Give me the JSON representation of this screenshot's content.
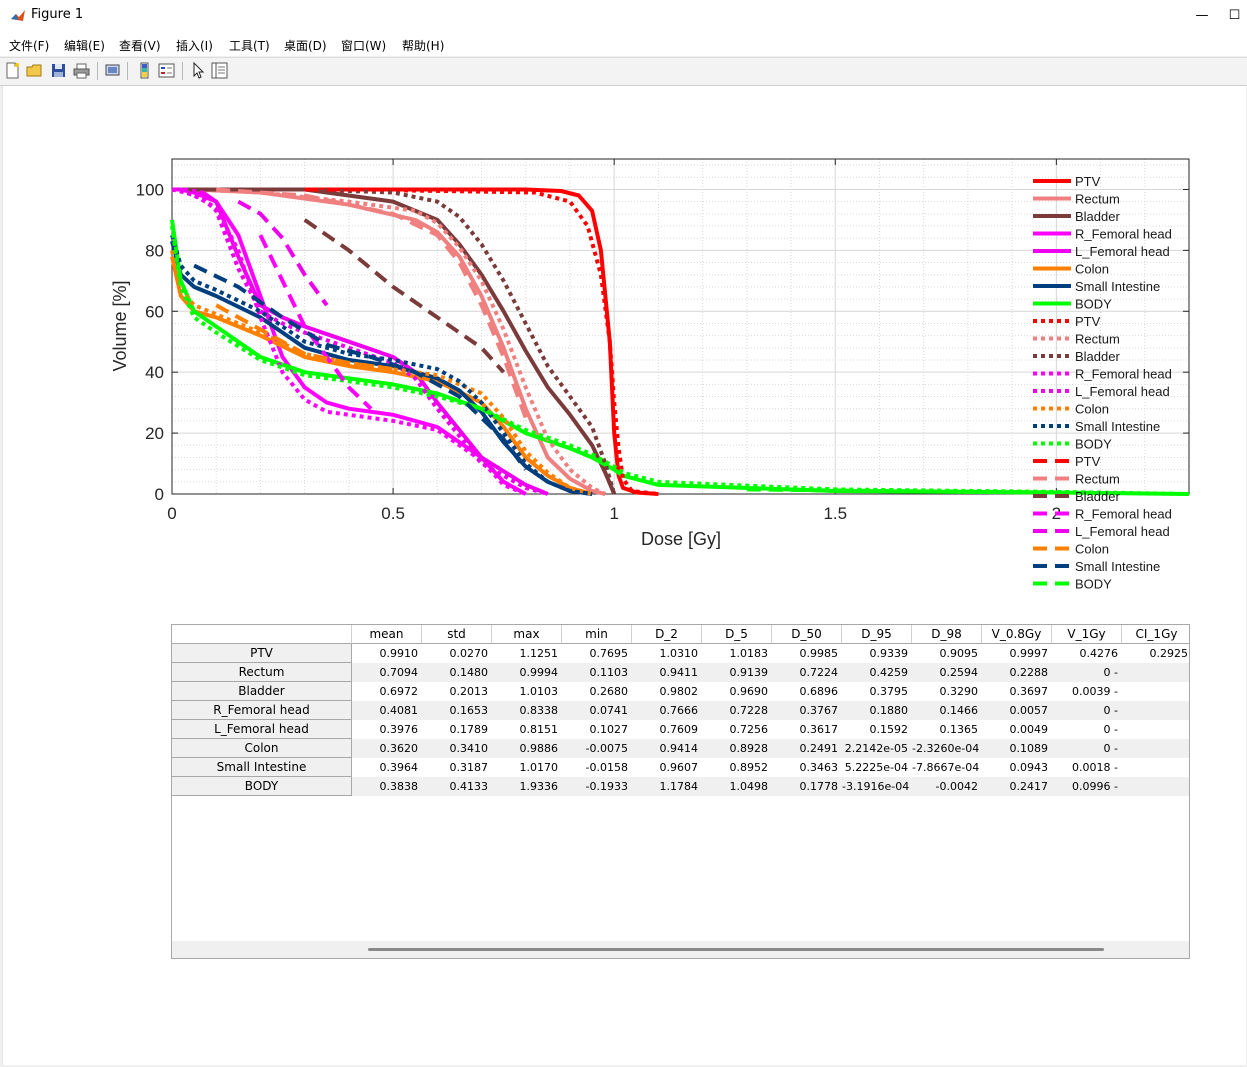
{
  "window": {
    "title": "Figure 1"
  },
  "menu": [
    "文件(F)",
    "编辑(E)",
    "查看(V)",
    "插入(I)",
    "工具(T)",
    "桌面(D)",
    "窗口(W)",
    "帮助(H)"
  ],
  "toolbar_icons": [
    "new-figure-icon",
    "open-icon",
    "save-icon",
    "print-icon",
    "print-preview-icon",
    "insert-colorbar-icon",
    "insert-legend-icon",
    "edit-plot-icon",
    "property-inspector-icon"
  ],
  "colors": {
    "PTV": "#ff0000",
    "Rectum": "#f08080",
    "Bladder": "#7b3b3b",
    "R_Femoral head": "#ff00ff",
    "L_Femoral head": "#ee00ee",
    "Colon": "#ff8000",
    "Small Intestine": "#003f7f",
    "BODY": "#00ff00"
  },
  "chart_data": {
    "type": "line",
    "xlabel": "Dose [Gy]",
    "ylabel": "Volume [%]",
    "xlim": [
      0,
      2.3
    ],
    "ylim": [
      0,
      110
    ],
    "xticks": [
      "0",
      "0.5",
      "1",
      "1.5",
      "2"
    ],
    "xtick_values": [
      0,
      0.5,
      1,
      1.5,
      2
    ],
    "yticks": [
      "0",
      "20",
      "40",
      "60",
      "80",
      "100"
    ],
    "ytick_values": [
      0,
      20,
      40,
      60,
      80,
      100
    ],
    "grid": true,
    "legend_position": "top-right",
    "series": [
      {
        "name": "PTV",
        "style": "solid",
        "x": [
          0,
          0.35,
          0.8,
          0.88,
          0.92,
          0.95,
          0.97,
          0.99,
          1.0,
          1.01,
          1.02,
          1.05,
          1.1
        ],
        "y": [
          100,
          100,
          100,
          99.5,
          98,
          93,
          80,
          50,
          20,
          6,
          2,
          0.5,
          0
        ]
      },
      {
        "name": "Rectum",
        "style": "solid",
        "x": [
          0,
          0.05,
          0.2,
          0.4,
          0.55,
          0.6,
          0.65,
          0.7,
          0.75,
          0.8,
          0.85,
          0.9,
          0.95,
          0.98
        ],
        "y": [
          100,
          100,
          99,
          95,
          90,
          86,
          78,
          65,
          48,
          28,
          12,
          5,
          1,
          0
        ]
      },
      {
        "name": "Bladder",
        "style": "solid",
        "x": [
          0,
          0.1,
          0.3,
          0.5,
          0.6,
          0.65,
          0.7,
          0.75,
          0.8,
          0.85,
          0.9,
          0.95,
          0.98,
          1.0
        ],
        "y": [
          100,
          100,
          100,
          96,
          90,
          82,
          72,
          60,
          47,
          35,
          26,
          16,
          7,
          0
        ]
      },
      {
        "name": "R_Femoral head",
        "style": "solid",
        "x": [
          0,
          0.02,
          0.05,
          0.1,
          0.15,
          0.2,
          0.25,
          0.3,
          0.35,
          0.4,
          0.5,
          0.6,
          0.7,
          0.75,
          0.8
        ],
        "y": [
          100,
          100,
          99,
          96,
          85,
          65,
          45,
          35,
          30,
          28,
          26,
          22,
          12,
          4,
          0
        ]
      },
      {
        "name": "L_Femoral head",
        "style": "solid",
        "x": [
          0,
          0.03,
          0.07,
          0.1,
          0.15,
          0.2,
          0.25,
          0.3,
          0.4,
          0.5,
          0.55,
          0.6,
          0.7,
          0.8,
          0.85
        ],
        "y": [
          100,
          100,
          99,
          96,
          78,
          62,
          58,
          55,
          50,
          45,
          40,
          30,
          12,
          3,
          0
        ]
      },
      {
        "name": "Colon",
        "style": "solid",
        "x": [
          0,
          0.02,
          0.05,
          0.1,
          0.2,
          0.3,
          0.4,
          0.5,
          0.6,
          0.7,
          0.75,
          0.8,
          0.85,
          0.9,
          0.95
        ],
        "y": [
          78,
          65,
          60,
          58,
          52,
          45,
          42,
          40,
          37,
          30,
          22,
          12,
          6,
          2,
          0
        ]
      },
      {
        "name": "Small Intestine",
        "style": "solid",
        "x": [
          0,
          0.02,
          0.05,
          0.1,
          0.2,
          0.3,
          0.4,
          0.5,
          0.6,
          0.65,
          0.7,
          0.75,
          0.8,
          0.85,
          0.9,
          0.95
        ],
        "y": [
          83,
          72,
          68,
          65,
          58,
          48,
          44,
          42,
          38,
          34,
          27,
          17,
          9,
          4,
          1,
          0
        ]
      },
      {
        "name": "BODY",
        "style": "solid",
        "x": [
          0,
          0.02,
          0.05,
          0.1,
          0.2,
          0.3,
          0.4,
          0.5,
          0.6,
          0.7,
          0.8,
          0.9,
          0.95,
          1.0,
          1.02,
          1.1,
          1.5,
          2.0,
          2.3
        ],
        "y": [
          90,
          70,
          60,
          55,
          45,
          40,
          38,
          36,
          33,
          28,
          20,
          15,
          12,
          8,
          6,
          3,
          1,
          0.5,
          0
        ]
      },
      {
        "name": "PTV",
        "style": "dot",
        "x": [
          0,
          0.4,
          0.82,
          0.9,
          0.94,
          0.97,
          0.99,
          1.0,
          1.01,
          1.02,
          1.04,
          1.1
        ],
        "y": [
          100,
          100,
          99,
          96,
          88,
          72,
          50,
          30,
          15,
          5,
          1,
          0
        ]
      },
      {
        "name": "Rectum",
        "style": "dot",
        "x": [
          0,
          0.05,
          0.2,
          0.4,
          0.55,
          0.6,
          0.65,
          0.7,
          0.75,
          0.8,
          0.85,
          0.9,
          0.95,
          0.98
        ],
        "y": [
          100,
          100,
          99,
          96,
          93,
          89,
          81,
          70,
          54,
          35,
          18,
          8,
          2,
          0
        ]
      },
      {
        "name": "Bladder",
        "style": "dot",
        "x": [
          0,
          0.1,
          0.3,
          0.5,
          0.6,
          0.65,
          0.7,
          0.75,
          0.8,
          0.85,
          0.9,
          0.95,
          0.98,
          1.0
        ],
        "y": [
          100,
          100,
          100,
          99,
          96,
          91,
          82,
          70,
          56,
          42,
          32,
          22,
          10,
          0
        ]
      },
      {
        "name": "R_Femoral head",
        "style": "dot",
        "x": [
          0,
          0.02,
          0.05,
          0.1,
          0.15,
          0.2,
          0.25,
          0.3,
          0.35,
          0.4,
          0.5,
          0.6,
          0.7,
          0.75,
          0.8
        ],
        "y": [
          100,
          100,
          98,
          94,
          80,
          58,
          40,
          31,
          27,
          26,
          24,
          21,
          11,
          3,
          0
        ]
      },
      {
        "name": "L_Femoral head",
        "style": "dot",
        "x": [
          0,
          0.03,
          0.07,
          0.1,
          0.15,
          0.2,
          0.25,
          0.3,
          0.4,
          0.5,
          0.55,
          0.6,
          0.7,
          0.8,
          0.85
        ],
        "y": [
          100,
          99,
          97,
          93,
          74,
          60,
          56,
          53,
          48,
          43,
          38,
          28,
          10,
          2,
          0
        ]
      },
      {
        "name": "Colon",
        "style": "dot",
        "x": [
          0,
          0.02,
          0.05,
          0.1,
          0.2,
          0.3,
          0.4,
          0.5,
          0.6,
          0.7,
          0.75,
          0.8,
          0.85,
          0.9,
          0.95
        ],
        "y": [
          80,
          67,
          62,
          59,
          53,
          46,
          43,
          41,
          39,
          33,
          25,
          14,
          7,
          2,
          0
        ]
      },
      {
        "name": "Small Intestine",
        "style": "dot",
        "x": [
          0,
          0.02,
          0.05,
          0.1,
          0.2,
          0.3,
          0.4,
          0.5,
          0.6,
          0.65,
          0.7,
          0.75,
          0.8,
          0.85,
          0.9,
          0.95
        ],
        "y": [
          85,
          75,
          70,
          67,
          60,
          50,
          46,
          44,
          41,
          37,
          30,
          20,
          10,
          4,
          1,
          0
        ]
      },
      {
        "name": "BODY",
        "style": "dot",
        "x": [
          0,
          0.02,
          0.05,
          0.1,
          0.2,
          0.3,
          0.4,
          0.5,
          0.6,
          0.7,
          0.8,
          0.9,
          0.95,
          1.0,
          1.02,
          1.1,
          1.5,
          2.0,
          2.3
        ],
        "y": [
          88,
          68,
          58,
          53,
          44,
          39,
          37,
          35,
          32,
          28,
          21,
          16,
          13,
          9,
          7,
          4,
          1.5,
          0.7,
          0
        ]
      },
      {
        "name": "PTV",
        "style": "dash",
        "x": [
          0.3,
          0.5
        ],
        "y": [
          100,
          100
        ]
      },
      {
        "name": "Rectum",
        "style": "dash",
        "x": [
          0.1,
          0.3,
          0.5,
          0.6,
          0.65,
          0.7,
          0.75,
          0.8
        ],
        "y": [
          100,
          98,
          92,
          85,
          76,
          62,
          45,
          25
        ]
      },
      {
        "name": "Bladder",
        "style": "dash",
        "x": [
          0.3,
          0.4,
          0.5,
          0.6,
          0.7,
          0.75
        ],
        "y": [
          90,
          80,
          68,
          58,
          48,
          40
        ]
      },
      {
        "name": "R_Femoral head",
        "style": "dash",
        "x": [
          0.2,
          0.25,
          0.3,
          0.35,
          0.4,
          0.45
        ],
        "y": [
          85,
          70,
          55,
          45,
          35,
          28
        ]
      },
      {
        "name": "L_Femoral head",
        "style": "dash",
        "x": [
          0.15,
          0.2,
          0.25,
          0.3,
          0.35
        ],
        "y": [
          96,
          92,
          84,
          72,
          62
        ]
      },
      {
        "name": "Colon",
        "style": "dash",
        "x": [
          0.1,
          0.2,
          0.3,
          0.4,
          0.5
        ],
        "y": [
          62,
          54,
          46,
          43,
          41
        ]
      },
      {
        "name": "Small Intestine",
        "style": "dash",
        "x": [
          0.05,
          0.15,
          0.25,
          0.35,
          0.45,
          0.55,
          0.65,
          0.75,
          0.8
        ],
        "y": [
          75,
          68,
          58,
          49,
          45,
          40,
          32,
          18,
          8
        ]
      },
      {
        "name": "BODY",
        "style": "dash",
        "x": [
          1.3,
          1.6,
          2.0
        ],
        "y": [
          1.5,
          1,
          0.5
        ]
      }
    ]
  },
  "table": {
    "columns": [
      "mean",
      "std",
      "max",
      "min",
      "D_2",
      "D_5",
      "D_50",
      "D_95",
      "D_98",
      "V_0.8Gy",
      "V_1Gy",
      "CI_1Gy"
    ],
    "rows": [
      {
        "name": "PTV",
        "values": [
          "0.9910",
          "0.0270",
          "1.1251",
          "0.7695",
          "1.0310",
          "1.0183",
          "0.9985",
          "0.9339",
          "0.9095",
          "0.9997",
          "0.4276",
          "0.2925"
        ]
      },
      {
        "name": "Rectum",
        "values": [
          "0.7094",
          "0.1480",
          "0.9994",
          "0.1103",
          "0.9411",
          "0.9139",
          "0.7224",
          "0.4259",
          "0.2594",
          "0.2288",
          "0 -",
          ""
        ]
      },
      {
        "name": "Bladder",
        "values": [
          "0.6972",
          "0.2013",
          "1.0103",
          "0.2680",
          "0.9802",
          "0.9690",
          "0.6896",
          "0.3795",
          "0.3290",
          "0.3697",
          "0.0039 -",
          ""
        ]
      },
      {
        "name": "R_Femoral head",
        "values": [
          "0.4081",
          "0.1653",
          "0.8338",
          "0.0741",
          "0.7666",
          "0.7228",
          "0.3767",
          "0.1880",
          "0.1466",
          "0.0057",
          "0 -",
          ""
        ]
      },
      {
        "name": "L_Femoral head",
        "values": [
          "0.3976",
          "0.1789",
          "0.8151",
          "0.1027",
          "0.7609",
          "0.7256",
          "0.3617",
          "0.1592",
          "0.1365",
          "0.0049",
          "0 -",
          ""
        ]
      },
      {
        "name": "Colon",
        "values": [
          "0.3620",
          "0.3410",
          "0.9886",
          "-0.0075",
          "0.9414",
          "0.8928",
          "0.2491",
          "2.2142e-05",
          "-2.3260e-04",
          "0.1089",
          "0 -",
          ""
        ]
      },
      {
        "name": "Small Intestine",
        "values": [
          "0.3964",
          "0.3187",
          "1.0170",
          "-0.0158",
          "0.9607",
          "0.8952",
          "0.3463",
          "5.2225e-04",
          "-7.8667e-04",
          "0.0943",
          "0.0018 -",
          ""
        ]
      },
      {
        "name": "BODY",
        "values": [
          "0.3838",
          "0.4133",
          "1.9336",
          "-0.1933",
          "1.1784",
          "1.0498",
          "0.1778",
          "-3.1916e-04",
          "-0.0042",
          "0.2417",
          "0.0996 -",
          ""
        ]
      }
    ]
  }
}
